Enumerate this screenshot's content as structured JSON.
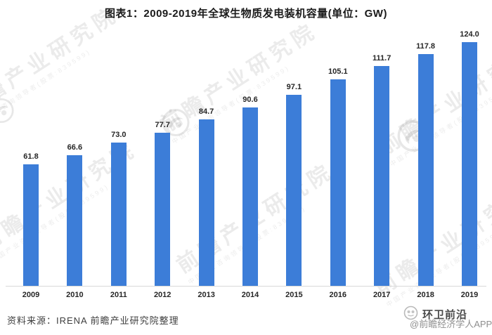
{
  "title": "图表1：2009-2019年全球生物质发电装机容量(单位：GW)",
  "chart_data": {
    "type": "bar",
    "title": "图表1：2009-2019年全球生物质发电装机容量(单位：GW)",
    "categories": [
      "2009",
      "2010",
      "2011",
      "2012",
      "2013",
      "2014",
      "2015",
      "2016",
      "2017",
      "2018",
      "2019"
    ],
    "values": [
      61.8,
      66.6,
      73.0,
      77.7,
      84.7,
      90.6,
      97.1,
      105.1,
      111.7,
      117.8,
      124.0
    ],
    "unit": "GW",
    "xlabel": "",
    "ylabel": "",
    "ylim": [
      0,
      130
    ],
    "grid": false,
    "legend": null,
    "value_labels_shown": true,
    "bar_color": "#3C7DD8",
    "label_color": "#262626",
    "axis_line_color": "#d9d9d9"
  },
  "watermark": {
    "main": "前瞻产业研究院",
    "sub": "中国产业咨询领导者(股票:839599)",
    "logo_name": "qianzhan-logo"
  },
  "footer": {
    "source": "资料来源：IRENA 前瞻产业研究院整理",
    "account": "环卫前沿",
    "app_credit": "@前瞻经济学人APP"
  }
}
